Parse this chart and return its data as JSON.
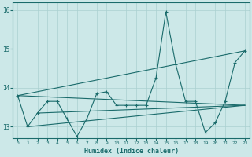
{
  "xlabel": "Humidex (Indice chaleur)",
  "x": [
    0,
    1,
    2,
    3,
    4,
    5,
    6,
    7,
    8,
    9,
    10,
    11,
    12,
    13,
    14,
    15,
    16,
    17,
    18,
    19,
    20,
    21,
    22,
    23
  ],
  "y_main": [
    13.8,
    13.0,
    13.35,
    13.65,
    13.65,
    13.2,
    12.75,
    13.2,
    13.85,
    13.9,
    13.55,
    13.55,
    13.55,
    13.55,
    14.25,
    15.95,
    14.6,
    13.65,
    13.65,
    12.85,
    13.1,
    13.65,
    14.65,
    14.95
  ],
  "trend_lines": [
    {
      "x": [
        0,
        23
      ],
      "y": [
        13.8,
        14.95
      ]
    },
    {
      "x": [
        0,
        23
      ],
      "y": [
        13.8,
        13.55
      ]
    },
    {
      "x": [
        1,
        23
      ],
      "y": [
        13.0,
        13.55
      ]
    },
    {
      "x": [
        2,
        23
      ],
      "y": [
        13.35,
        13.55
      ]
    }
  ],
  "bg_color": "#cce8e8",
  "line_color": "#1a6b6b",
  "grid_color": "#aad0d0",
  "ylim": [
    12.7,
    16.2
  ],
  "xlim": [
    -0.5,
    23.5
  ],
  "yticks": [
    13,
    14,
    15,
    16
  ],
  "xticks": [
    0,
    1,
    2,
    3,
    4,
    5,
    6,
    7,
    8,
    9,
    10,
    11,
    12,
    13,
    14,
    15,
    16,
    17,
    18,
    19,
    20,
    21,
    22,
    23
  ],
  "figsize": [
    3.2,
    2.0
  ],
  "dpi": 100
}
